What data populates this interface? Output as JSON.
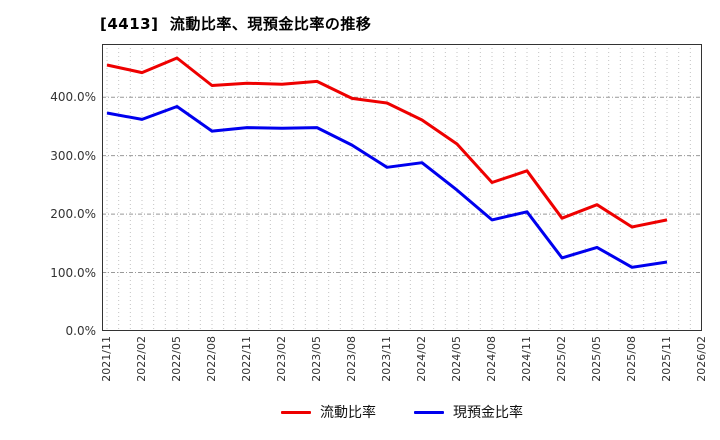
{
  "title": "[4413]  流動比率、現預金比率の推移",
  "colors": {
    "current_ratio_line": "#ee0000",
    "cash_ratio_line": "#0000ee",
    "minor_grid": "#c3c3c3",
    "major_grid": "#999999",
    "plot_border": "#333333",
    "tick_text": "#333333",
    "title_text": "#000000"
  },
  "legend": {
    "items": [
      {
        "label": "流動比率",
        "color": "#ee0000"
      },
      {
        "label": "現預金比率",
        "color": "#0000ee"
      }
    ]
  },
  "y_axis": {
    "ticks": [
      {
        "value": 400,
        "label": "400.0%"
      },
      {
        "value": 300,
        "label": "300.0%"
      },
      {
        "value": 200,
        "label": "200.0%"
      },
      {
        "value": 100,
        "label": "100.0%"
      },
      {
        "value": 0,
        "label": "0.0%"
      }
    ]
  },
  "chart_data": {
    "type": "line",
    "title": "[4413]  流動比率、現預金比率の推移",
    "categories": [
      "2021/11",
      "2022/02",
      "2022/05",
      "2022/08",
      "2022/11",
      "2023/02",
      "2023/05",
      "2023/08",
      "2023/11",
      "2024/02",
      "2024/05",
      "2024/08",
      "2024/11",
      "2025/02",
      "2025/05",
      "2025/08",
      "2025/11",
      "2026/02"
    ],
    "series": [
      {
        "name": "流動比率",
        "color": "#ee0000",
        "values": [
          455,
          442,
          467,
          420,
          424,
          422,
          427,
          398,
          390,
          361,
          320,
          254,
          274,
          193,
          216,
          178,
          190
        ]
      },
      {
        "name": "現預金比率",
        "color": "#0000ee",
        "values": [
          373,
          362,
          384,
          342,
          348,
          347,
          348,
          318,
          280,
          288,
          241,
          190,
          204,
          125,
          143,
          109,
          118
        ]
      }
    ],
    "ylim": [
      0,
      491
    ],
    "yticks": [
      0,
      100,
      200,
      300,
      400
    ],
    "ytick_format": "percent_one_decimal",
    "grid": "minor vertical dotted (monthly), major horizontal dashed at each 100%",
    "legend_position": "bottom-center",
    "note_last_category_has_no_data": "2026/02"
  }
}
